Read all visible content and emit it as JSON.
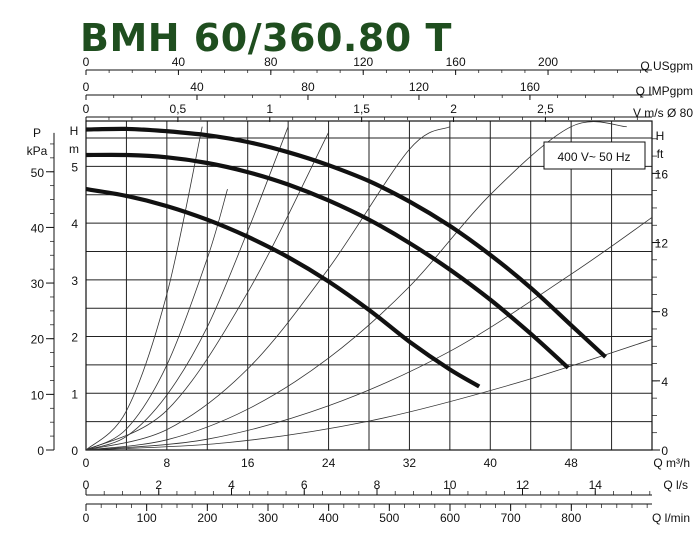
{
  "chart_data": {
    "type": "line",
    "title": "BMH 60/360.80 T",
    "annotation": "400 V~ 50 Hz",
    "axes": {
      "top": [
        {
          "label": "Q USgpm",
          "ticks": [
            "0",
            "40",
            "80",
            "120",
            "160",
            "200"
          ]
        },
        {
          "label": "Q IMPgpm",
          "ticks": [
            "0",
            "40",
            "80",
            "120",
            "160"
          ]
        },
        {
          "label": "V m/s Ø 80",
          "ticks": [
            "0",
            "0,5",
            "1",
            "1,5",
            "2",
            "2,5"
          ]
        }
      ],
      "left_outer": {
        "label_line1": "P",
        "label_line2": "kPa",
        "ticks": [
          "0",
          "10",
          "20",
          "30",
          "40",
          "50"
        ]
      },
      "left_inner": {
        "label_line1": "H",
        "label_line2": "m",
        "ticks": [
          "0",
          "1",
          "2",
          "3",
          "4",
          "5"
        ]
      },
      "right": {
        "label_line1": "H",
        "label_line2": "ft",
        "ticks": [
          "0",
          "4",
          "8",
          "12",
          "16"
        ]
      },
      "bottom": [
        {
          "label": "Q m³/h",
          "ticks": [
            "0",
            "8",
            "16",
            "24",
            "32",
            "40",
            "48"
          ]
        },
        {
          "label": "Q l/s",
          "ticks": [
            "0",
            "2",
            "4",
            "6",
            "8",
            "10",
            "12",
            "14"
          ]
        },
        {
          "label": "Q l/min",
          "ticks": [
            "0",
            "100",
            "200",
            "300",
            "400",
            "500",
            "600",
            "700",
            "800"
          ]
        }
      ]
    },
    "xlim": [
      0,
      56
    ],
    "ylim": [
      0,
      5.8
    ],
    "grid": true,
    "x_unit": "m³/h",
    "y_unit": "m",
    "series": [
      {
        "x": [
          0,
          4,
          8,
          12,
          16,
          20,
          24,
          28,
          32,
          36,
          38.9
        ],
        "y": [
          4.6,
          4.48,
          4.3,
          4.06,
          3.76,
          3.4,
          2.97,
          2.47,
          1.91,
          1.42,
          1.12
        ]
      },
      {
        "x": [
          0,
          4,
          8,
          12,
          16,
          20,
          24,
          28,
          32,
          36,
          40,
          44,
          47.7
        ],
        "y": [
          5.2,
          5.2,
          5.16,
          5.06,
          4.9,
          4.68,
          4.4,
          4.06,
          3.65,
          3.18,
          2.65,
          2.05,
          1.45
        ]
      },
      {
        "x": [
          0,
          4,
          8,
          12,
          16,
          20,
          24,
          28,
          32,
          36,
          40,
          44,
          48,
          51.4
        ],
        "y": [
          5.65,
          5.66,
          5.62,
          5.55,
          5.43,
          5.25,
          5.02,
          4.74,
          4.38,
          3.95,
          3.44,
          2.86,
          2.2,
          1.64
        ]
      }
    ],
    "system_curves": [
      {
        "x": [
          0,
          4,
          8,
          11.5
        ],
        "y": [
          0,
          0.69,
          2.75,
          5.7
        ]
      },
      {
        "x": [
          0,
          4,
          8,
          12,
          14
        ],
        "y": [
          0,
          0.37,
          1.5,
          3.38,
          4.6
        ]
      },
      {
        "x": [
          0,
          4,
          8,
          12,
          16,
          20
        ],
        "y": [
          0,
          0.24,
          0.97,
          2.17,
          3.86,
          5.7
        ]
      },
      {
        "x": [
          0,
          8,
          16,
          24
        ],
        "y": [
          0,
          0.7,
          2.78,
          5.6
        ]
      },
      {
        "x": [
          0,
          8,
          16,
          24,
          32,
          36
        ],
        "y": [
          0,
          0.36,
          1.43,
          3.2,
          5.3,
          5.7
        ]
      },
      {
        "x": [
          0,
          8,
          16,
          24,
          32,
          40,
          48,
          53.5
        ],
        "y": [
          0,
          0.18,
          0.72,
          1.62,
          2.88,
          4.5,
          5.7,
          5.7
        ]
      },
      {
        "x": [
          0,
          12,
          24,
          36,
          48,
          56
        ],
        "y": [
          0,
          0.19,
          0.78,
          1.74,
          3.1,
          4.1
        ]
      },
      {
        "x": [
          0,
          14,
          28,
          42,
          56
        ],
        "y": [
          0,
          0.13,
          0.51,
          1.15,
          1.95
        ]
      }
    ]
  }
}
